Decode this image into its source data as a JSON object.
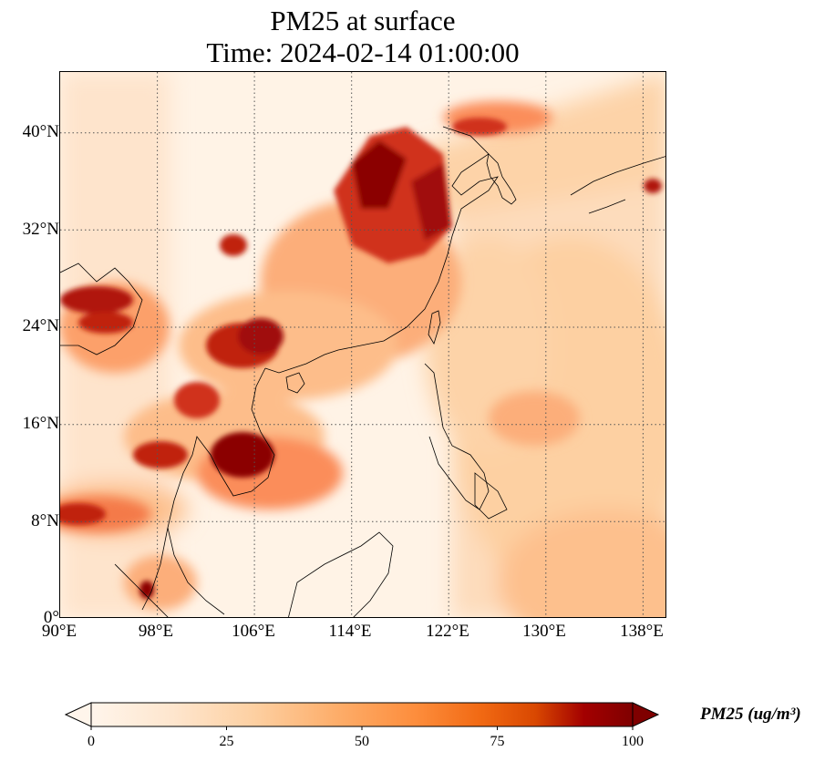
{
  "title": {
    "line1": "PM25 at surface",
    "line2": "Time: 2024-02-14 01:00:00"
  },
  "map": {
    "projection": "PlateCarree",
    "extent": {
      "lon_min": 90,
      "lon_max": 140,
      "lat_min": 0,
      "lat_max": 45
    },
    "gridlines": "dotted",
    "lat_ticks": [
      "0°",
      "8°N",
      "16°N",
      "24°N",
      "32°N",
      "40°N"
    ],
    "lon_ticks": [
      "90°E",
      "98°E",
      "106°E",
      "114°E",
      "122°E",
      "130°E",
      "138°E"
    ]
  },
  "colorbar": {
    "title": "PM25 (ug/m³)",
    "ticks": [
      "0",
      "25",
      "50",
      "75",
      "100"
    ],
    "range": [
      0,
      100
    ],
    "extend": "both",
    "colormap": "OrRd",
    "colors": [
      "#fff5eb",
      "#fee6ce",
      "#fdd0a2",
      "#fdae6b",
      "#fd8d3c",
      "#f16913",
      "#d94801",
      "#a30000",
      "#7f0000"
    ]
  }
}
